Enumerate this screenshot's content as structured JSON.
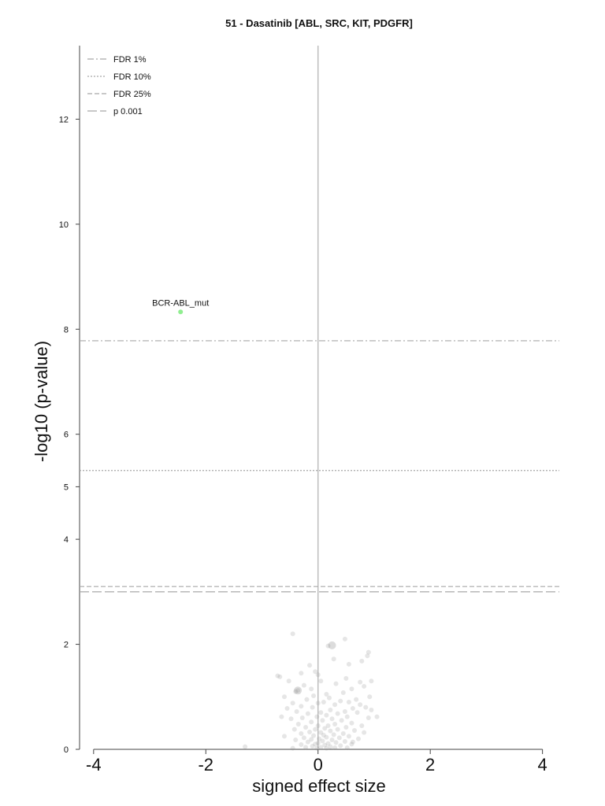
{
  "chart_data": {
    "type": "scatter",
    "title": "51 - Dasatinib [ABL, SRC, KIT, PDGFR]",
    "xlabel": "signed effect size",
    "ylabel": "-log10 (p-value)",
    "xlim": [
      -4.25,
      4.3
    ],
    "ylim": [
      0,
      13.4
    ],
    "x_ticks": [
      -4,
      -2,
      0,
      2,
      4
    ],
    "y_ticks": [
      0,
      2,
      4,
      5,
      6,
      8,
      10,
      12
    ],
    "grid": false,
    "legend_placement": "top-left",
    "thresholds": [
      {
        "name": "FDR 1%",
        "value": 7.78,
        "style": "dashdot"
      },
      {
        "name": "FDR 10%",
        "value": 5.31,
        "style": "dotted"
      },
      {
        "name": "FDR 25%",
        "value": 3.1,
        "style": "dashed"
      },
      {
        "name": "p 0.001",
        "value": 3.0,
        "style": "longdash"
      }
    ],
    "highlighted_points": [
      {
        "label": "BCR-ABL_mut",
        "x": -2.45,
        "y": 8.33,
        "color": "#90ee90"
      }
    ],
    "colors": {
      "points": "#8c8c8c",
      "highlight": "#90ee90",
      "threshold": "#a8a8a8",
      "zero_line": "#bdbdbd"
    },
    "points": [
      [
        -0.45,
        2.2
      ],
      [
        0.18,
        1.97
      ],
      [
        0.48,
        2.1
      ],
      [
        0.9,
        1.85
      ],
      [
        0.88,
        1.78
      ],
      [
        0.78,
        1.68
      ],
      [
        0.55,
        1.62
      ],
      [
        0.28,
        1.72
      ],
      [
        -0.15,
        1.6
      ],
      [
        -0.3,
        1.45
      ],
      [
        -0.05,
        1.48
      ],
      [
        0.0,
        1.42
      ],
      [
        -0.72,
        1.4
      ],
      [
        -0.68,
        1.38
      ],
      [
        0.32,
        1.25
      ],
      [
        0.05,
        1.3
      ],
      [
        0.5,
        1.35
      ],
      [
        0.95,
        1.3
      ],
      [
        -0.52,
        1.3
      ],
      [
        0.75,
        1.28
      ],
      [
        -0.25,
        1.22
      ],
      [
        0.82,
        1.2
      ],
      [
        -0.4,
        1.1
      ],
      [
        -0.36,
        1.12
      ],
      [
        0.6,
        1.15
      ],
      [
        0.45,
        1.08
      ],
      [
        -0.12,
        1.15
      ],
      [
        0.15,
        1.05
      ],
      [
        0.92,
        1.0
      ],
      [
        0.68,
        0.95
      ],
      [
        0.2,
        0.98
      ],
      [
        -0.6,
        1.0
      ],
      [
        -0.08,
        1.02
      ],
      [
        0.4,
        0.92
      ],
      [
        -0.2,
        0.95
      ],
      [
        0.55,
        0.9
      ],
      [
        -0.45,
        0.88
      ],
      [
        0.1,
        0.9
      ],
      [
        0.75,
        0.85
      ],
      [
        -0.3,
        0.82
      ],
      [
        0.3,
        0.85
      ],
      [
        0.0,
        0.88
      ],
      [
        -0.1,
        0.8
      ],
      [
        0.62,
        0.78
      ],
      [
        0.85,
        0.8
      ],
      [
        -0.55,
        0.78
      ],
      [
        0.22,
        0.75
      ],
      [
        0.48,
        0.72
      ],
      [
        -0.38,
        0.72
      ],
      [
        0.05,
        0.7
      ],
      [
        0.7,
        0.7
      ],
      [
        -0.18,
        0.68
      ],
      [
        0.35,
        0.68
      ],
      [
        0.15,
        0.65
      ],
      [
        -0.02,
        0.62
      ],
      [
        0.52,
        0.62
      ],
      [
        -0.28,
        0.6
      ],
      [
        0.9,
        0.6
      ],
      [
        0.25,
        0.58
      ],
      [
        -0.48,
        0.58
      ],
      [
        0.08,
        0.55
      ],
      [
        0.42,
        0.55
      ],
      [
        -0.12,
        0.52
      ],
      [
        0.6,
        0.5
      ],
      [
        0.3,
        0.48
      ],
      [
        -0.35,
        0.48
      ],
      [
        0.18,
        0.45
      ],
      [
        0.0,
        0.45
      ],
      [
        0.78,
        0.45
      ],
      [
        -0.22,
        0.42
      ],
      [
        0.5,
        0.42
      ],
      [
        0.12,
        0.4
      ],
      [
        -0.05,
        0.38
      ],
      [
        0.35,
        0.38
      ],
      [
        -0.42,
        0.38
      ],
      [
        0.65,
        0.36
      ],
      [
        0.22,
        0.35
      ],
      [
        -0.15,
        0.33
      ],
      [
        0.05,
        0.32
      ],
      [
        0.45,
        0.3
      ],
      [
        -0.3,
        0.3
      ],
      [
        0.28,
        0.28
      ],
      [
        0.1,
        0.27
      ],
      [
        -0.08,
        0.26
      ],
      [
        0.55,
        0.25
      ],
      [
        0.15,
        0.23
      ],
      [
        -0.25,
        0.22
      ],
      [
        0.38,
        0.22
      ],
      [
        0.02,
        0.2
      ],
      [
        -0.12,
        0.19
      ],
      [
        0.25,
        0.18
      ],
      [
        0.72,
        0.2
      ],
      [
        -0.4,
        0.18
      ],
      [
        0.08,
        0.16
      ],
      [
        0.48,
        0.15
      ],
      [
        -0.18,
        0.14
      ],
      [
        0.32,
        0.13
      ],
      [
        0.0,
        0.12
      ],
      [
        0.18,
        0.11
      ],
      [
        -0.05,
        0.1
      ],
      [
        0.6,
        0.1
      ],
      [
        -0.3,
        0.09
      ],
      [
        0.12,
        0.08
      ],
      [
        0.4,
        0.07
      ],
      [
        -0.1,
        0.06
      ],
      [
        0.22,
        0.05
      ],
      [
        0.05,
        0.04
      ],
      [
        -0.22,
        0.04
      ],
      [
        0.3,
        0.03
      ],
      [
        -0.02,
        0.02
      ],
      [
        0.15,
        0.02
      ],
      [
        0.52,
        0.03
      ],
      [
        -0.45,
        0.02
      ],
      [
        -1.3,
        0.05
      ],
      [
        0.62,
        0.14
      ],
      [
        0.82,
        0.32
      ],
      [
        -0.6,
        0.25
      ],
      [
        -0.65,
        0.62
      ],
      [
        0.95,
        0.75
      ],
      [
        1.05,
        0.62
      ]
    ],
    "large_points": [
      [
        0.25,
        1.98,
        5
      ],
      [
        -0.36,
        1.12,
        5
      ]
    ]
  }
}
